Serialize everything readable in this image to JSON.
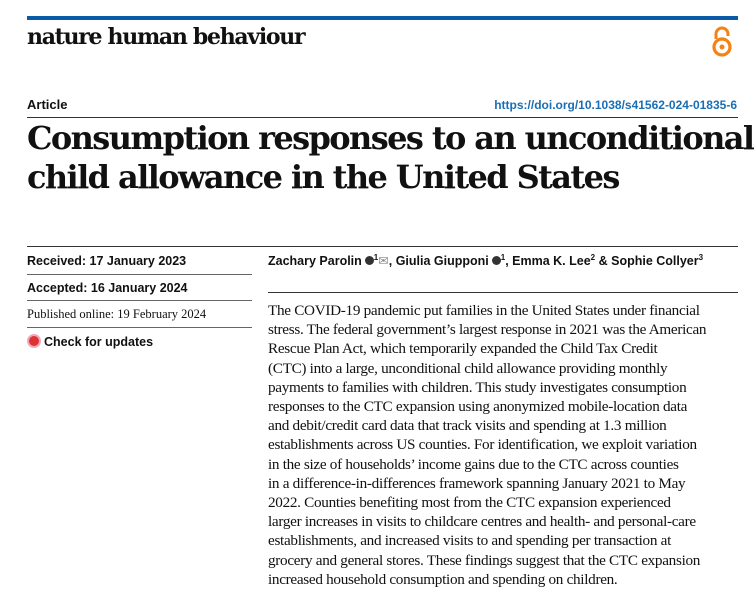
{
  "header": {
    "journal": "nature human behaviour",
    "open_access_icon": "open-access-lock-icon",
    "accent": "#0a5aa8",
    "oa_color": "#f68212"
  },
  "article_type": "Article",
  "doi": "https://doi.org/10.1038/s41562-024-01835-6",
  "title_lines": [
    "Consumption responses to an unconditional",
    "child allowance in the United States"
  ],
  "dates": {
    "received": "Received: 17 January 2023",
    "accepted": "Accepted: 16 January 2024",
    "published": "Published online: 19 February 2024",
    "check_updates": "Check for updates"
  },
  "authors": [
    {
      "name": "Zachary Parolin",
      "aff": "1"
    },
    {
      "name": "Giulia Giupponi",
      "aff": "1"
    },
    {
      "name": "Emma K. Lee",
      "aff": "2"
    },
    {
      "name": "Sophie Collyer",
      "aff": "3"
    }
  ],
  "author_separators": [
    ", ",
    ", ",
    " & "
  ],
  "abstract_lines": [
    "The COVID-19 pandemic put families in the United States under financial",
    "stress. The federal government’s largest response in 2021 was the American",
    "Rescue Plan Act, which temporarily expanded the Child Tax Credit",
    "(CTC) into a large, unconditional child allowance providing monthly",
    "payments to families with children. This study investigates consumption",
    "responses to the CTC expansion using anonymized mobile-location data",
    "and debit/credit card data that track visits and spending at 1.3 million",
    "establishments across US counties. For identification, we exploit variation",
    "in the size of households’ income gains due to the CTC across counties",
    "in a difference-in-differences framework spanning January 2021 to May",
    "2022. Counties benefiting most from the CTC expansion experienced",
    "larger increases in visits to childcare centres and health- and personal-care",
    "establishments, and increased visits to and spending per transaction at",
    "grocery and general stores. These findings suggest that the CTC expansion",
    "increased household consumption and spending on children."
  ]
}
